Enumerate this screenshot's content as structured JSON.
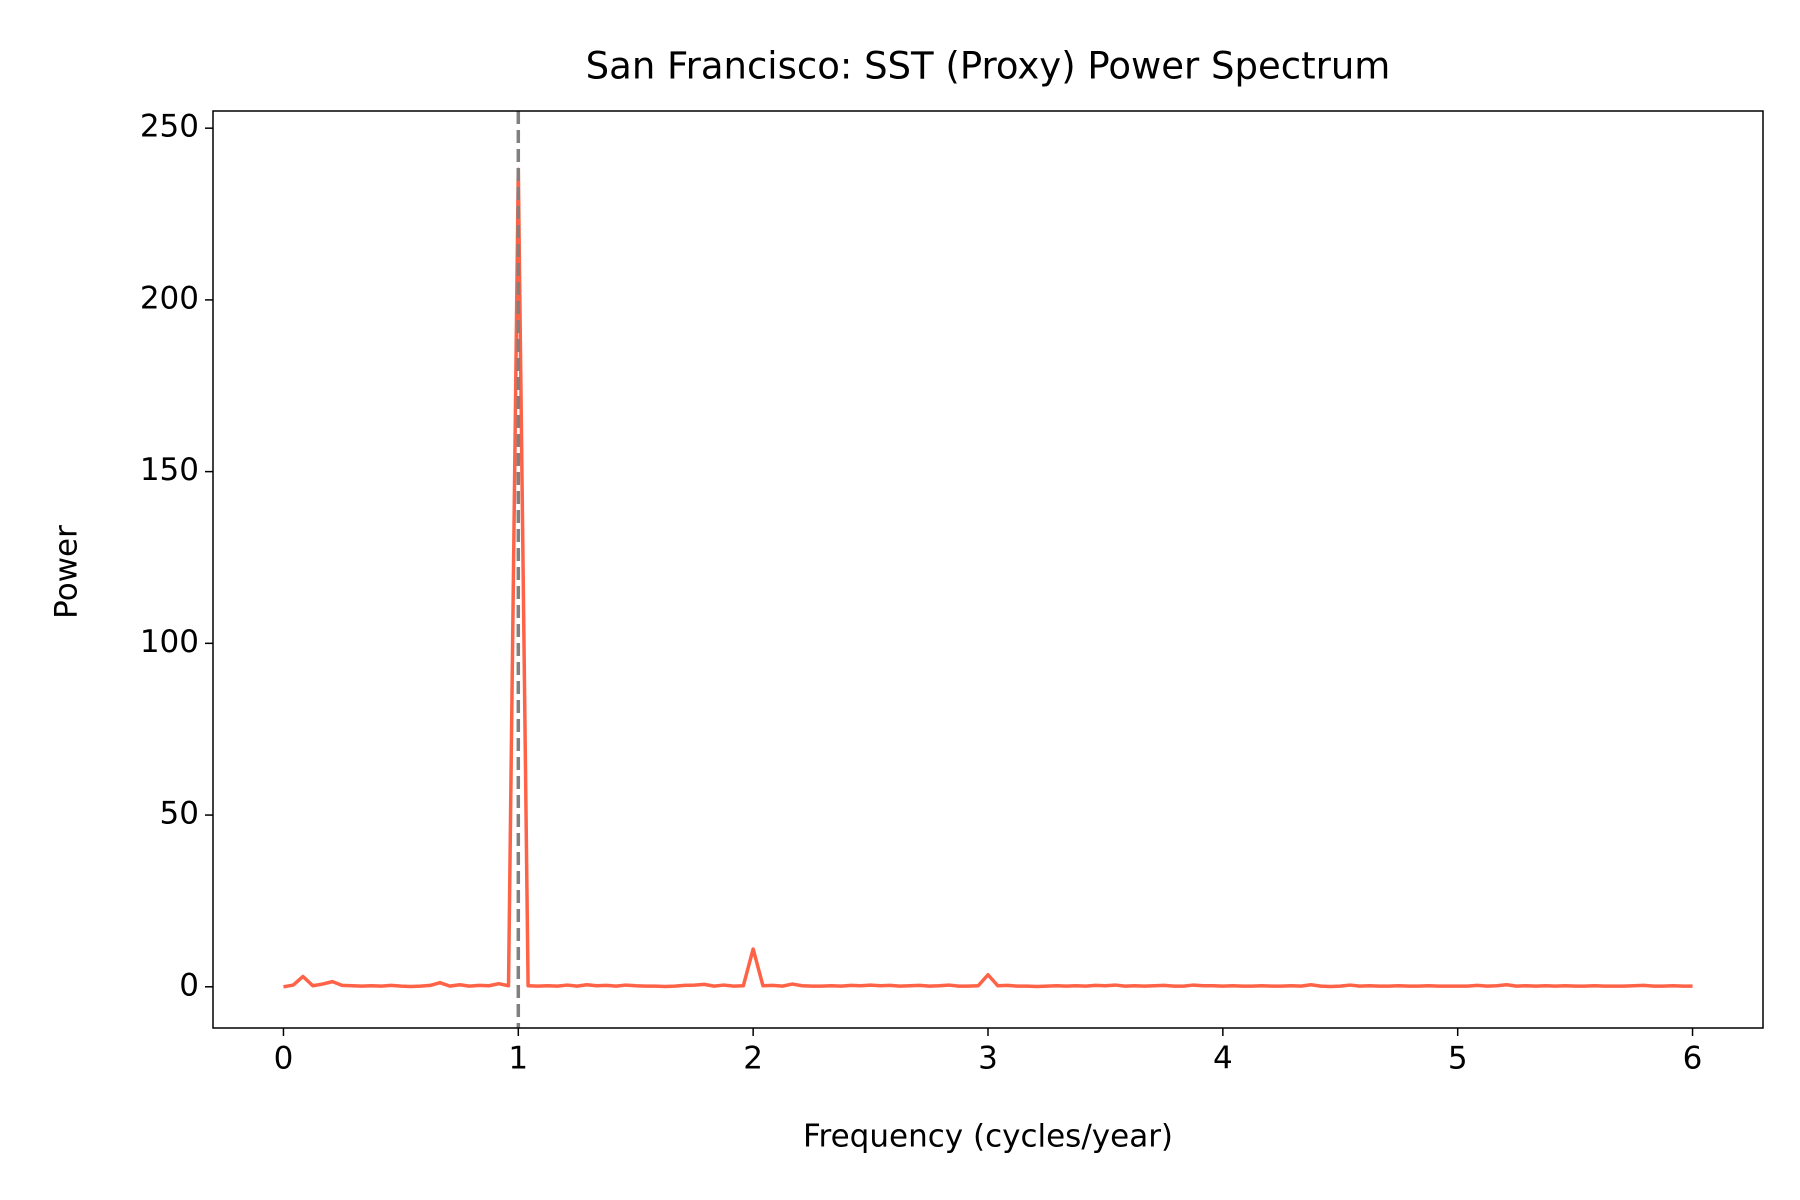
{
  "chart_data": {
    "type": "line",
    "title": "San Francisco: SST (Proxy) Power Spectrum",
    "xlabel": "Frequency (cycles/year)",
    "ylabel": "Power",
    "color": "#ff6347",
    "x": [
      0,
      0.0417,
      0.0833,
      0.125,
      0.1667,
      0.2083,
      0.25,
      0.2917,
      0.3333,
      0.375,
      0.4167,
      0.4583,
      0.5,
      0.5417,
      0.5833,
      0.625,
      0.6667,
      0.7083,
      0.75,
      0.7917,
      0.8333,
      0.875,
      0.9167,
      0.9583,
      1,
      1.0417,
      1.0833,
      1.125,
      1.1667,
      1.2083,
      1.25,
      1.2917,
      1.3333,
      1.375,
      1.4167,
      1.4583,
      1.5,
      1.5417,
      1.5833,
      1.625,
      1.6667,
      1.7083,
      1.75,
      1.7917,
      1.8333,
      1.875,
      1.9167,
      1.9583,
      2,
      2.0417,
      2.0833,
      2.125,
      2.1667,
      2.2083,
      2.25,
      2.2917,
      2.3333,
      2.375,
      2.4167,
      2.4583,
      2.5,
      2.5417,
      2.5833,
      2.625,
      2.6667,
      2.7083,
      2.75,
      2.7917,
      2.8333,
      2.875,
      2.9167,
      2.9583,
      3,
      3.0417,
      3.0833,
      3.125,
      3.1667,
      3.2083,
      3.25,
      3.2917,
      3.3333,
      3.375,
      3.4167,
      3.4583,
      3.5,
      3.5417,
      3.5833,
      3.625,
      3.6667,
      3.7083,
      3.75,
      3.7917,
      3.8333,
      3.875,
      3.9167,
      3.9583,
      4,
      4.0417,
      4.0833,
      4.125,
      4.1667,
      4.2083,
      4.25,
      4.2917,
      4.3333,
      4.375,
      4.4167,
      4.4583,
      4.5,
      4.5417,
      4.5833,
      4.625,
      4.6667,
      4.7083,
      4.75,
      4.7917,
      4.8333,
      4.875,
      4.9167,
      4.9583,
      5,
      5.0417,
      5.0833,
      5.125,
      5.1667,
      5.2083,
      5.25,
      5.2917,
      5.3333,
      5.375,
      5.4167,
      5.4583,
      5.5,
      5.5417,
      5.5833,
      5.625,
      5.6667,
      5.7083,
      5.75,
      5.7917,
      5.8333,
      5.875,
      5.9167,
      5.9583,
      6
    ],
    "values": [
      0,
      0.5,
      3,
      0.3,
      0.8,
      1.5,
      0.4,
      0.3,
      0.2,
      0.3,
      0.2,
      0.4,
      0.2,
      0.1,
      0.2,
      0.4,
      1.2,
      0.2,
      0.6,
      0.2,
      0.4,
      0.3,
      0.9,
      0.3,
      238,
      0.3,
      0.2,
      0.3,
      0.2,
      0.5,
      0.2,
      0.6,
      0.3,
      0.4,
      0.2,
      0.5,
      0.3,
      0.2,
      0.2,
      0.1,
      0.2,
      0.4,
      0.5,
      0.7,
      0.2,
      0.5,
      0.2,
      0.3,
      11,
      0.3,
      0.4,
      0.2,
      0.8,
      0.3,
      0.2,
      0.2,
      0.3,
      0.2,
      0.4,
      0.3,
      0.5,
      0.3,
      0.4,
      0.2,
      0.3,
      0.4,
      0.2,
      0.3,
      0.5,
      0.2,
      0.2,
      0.3,
      3.5,
      0.3,
      0.4,
      0.2,
      0.2,
      0.1,
      0.2,
      0.3,
      0.2,
      0.3,
      0.2,
      0.4,
      0.3,
      0.5,
      0.2,
      0.3,
      0.2,
      0.3,
      0.4,
      0.2,
      0.2,
      0.5,
      0.3,
      0.3,
      0.2,
      0.3,
      0.2,
      0.2,
      0.3,
      0.2,
      0.2,
      0.3,
      0.2,
      0.6,
      0.2,
      0.1,
      0.2,
      0.5,
      0.2,
      0.3,
      0.2,
      0.2,
      0.3,
      0.2,
      0.2,
      0.3,
      0.2,
      0.2,
      0.2,
      0.2,
      0.4,
      0.2,
      0.3,
      0.6,
      0.2,
      0.3,
      0.2,
      0.3,
      0.2,
      0.3,
      0.2,
      0.2,
      0.3,
      0.2,
      0.2,
      0.2,
      0.3,
      0.4,
      0.2,
      0.2,
      0.3,
      0.2,
      0.2
    ],
    "vline": {
      "x": 1,
      "color": "#808080",
      "linestyle": "dashed"
    },
    "xlim": [
      -0.3,
      6.3
    ],
    "xticks": [
      0,
      1,
      2,
      3,
      4,
      5,
      6
    ],
    "ylim": [
      -12,
      255
    ],
    "yticks": [
      0,
      50,
      100,
      150,
      200,
      250
    ],
    "grid": false
  }
}
